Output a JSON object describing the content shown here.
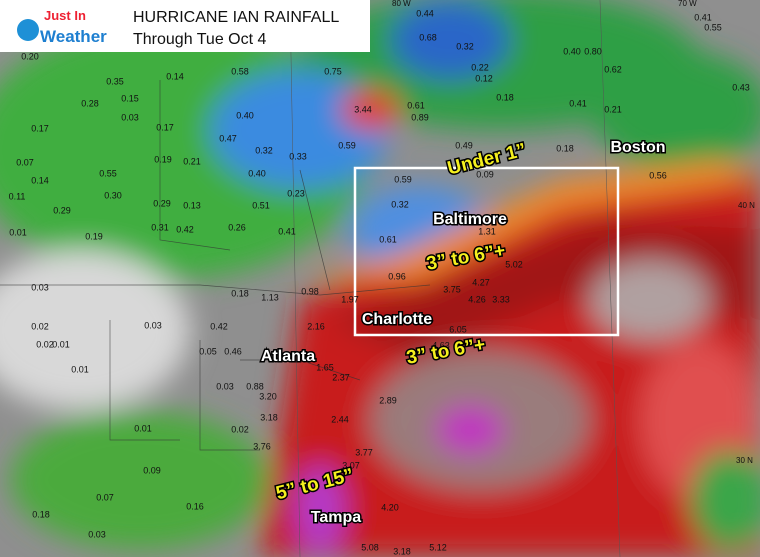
{
  "header": {
    "logo_top": "Just In",
    "logo_bottom": "Weather",
    "title": "HURRICANE IAN RAINFALL",
    "subtitle": "Through Tue Oct 4"
  },
  "grid_labels": [
    "80 W",
    "70 W",
    "40 N",
    "30 N"
  ],
  "cities": [
    "Boston",
    "Baltimore",
    "Charlotte",
    "Atlanta",
    "Tampa"
  ],
  "annotations": [
    "Under 1”",
    "3” to 6”+",
    "3” to 6”+",
    "5” to 15”"
  ],
  "values": [
    "0.44",
    "0.68",
    "0.32",
    "0.22",
    "0.12",
    "0.18",
    "0.40",
    "0.80",
    "0.62",
    "0.41",
    "0.21",
    "0.41",
    "0.55",
    "0.43",
    "0.20",
    "0.35",
    "0.15",
    "0.14",
    "0.58",
    "0.75",
    "3.44",
    "0.61",
    "0.89",
    "0.47",
    "0.40",
    "0.17",
    "0.28",
    "0.03",
    "0.17",
    "0.32",
    "0.33",
    "0.59",
    "0.49",
    "0.18",
    "0.56",
    "0.07",
    "0.14",
    "0.55",
    "0.19",
    "0.21",
    "0.40",
    "0.59",
    "1.31",
    "0.09",
    "0.29",
    "0.30",
    "0.29",
    "0.13",
    "0.51",
    "0.23",
    "0.31",
    "0.42",
    "0.26",
    "0.41",
    "0.32",
    "0.61",
    "0.11",
    "0.01",
    "0.19",
    "0.96",
    "5.02",
    "4.27",
    "3.75",
    "4.26",
    "3.33",
    "0.18",
    "1.13",
    "0.98",
    "1.97",
    "0.03",
    "0.02",
    "0.03",
    "0.42",
    "0.02",
    "0.01",
    "0.05",
    "0.46",
    "2.16",
    "6.05",
    "4.63",
    "1.65",
    "2.37",
    "0.01",
    "0.03",
    "0.88",
    "3.20",
    "3.18",
    "2.44",
    "2.89",
    "0.01",
    "0.02",
    "3.76",
    "3.77",
    "3.07",
    "0.07",
    "0.09",
    "0.18",
    "0.03",
    "0.16",
    "4.20",
    "5.08",
    "3.18",
    "5.12"
  ]
}
